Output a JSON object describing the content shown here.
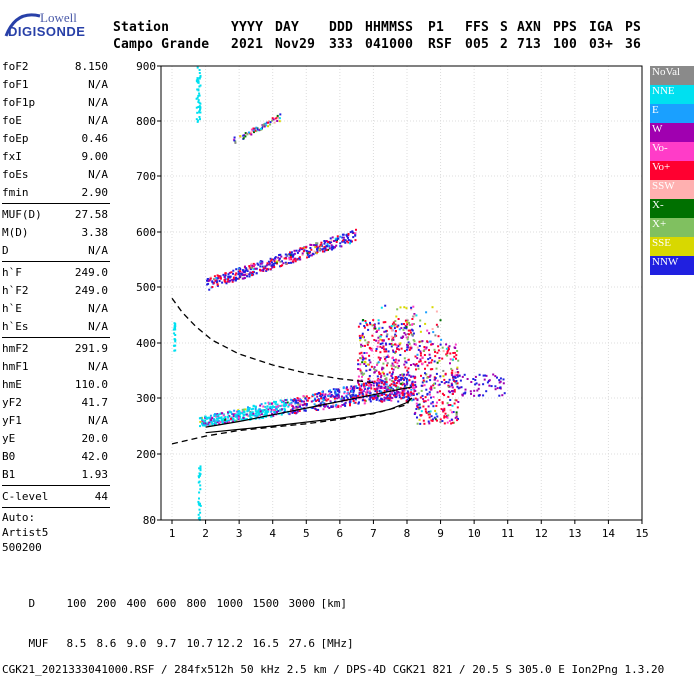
{
  "logo": {
    "line1": "Lowell",
    "line2": "DIGISONDE"
  },
  "header": {
    "labels": [
      "Station",
      "YYYY",
      "DAY",
      "DDD",
      "HHMMSS",
      "P1",
      "FFS",
      "S",
      "AXN",
      "PPS",
      "IGA",
      "PS"
    ],
    "values": [
      "Campo Grande",
      "2021",
      "Nov29",
      "333",
      "041000",
      "RSF",
      "005",
      "2",
      "713",
      "100",
      "03+",
      "36"
    ]
  },
  "sidebar": {
    "groups": [
      [
        {
          "name": "foF2",
          "value": "8.150"
        },
        {
          "name": "foF1",
          "value": "N/A"
        },
        {
          "name": "foF1p",
          "value": "N/A"
        },
        {
          "name": "foE",
          "value": "N/A"
        },
        {
          "name": "foEp",
          "value": "0.46"
        },
        {
          "name": "fxI",
          "value": "9.00"
        },
        {
          "name": "foEs",
          "value": "N/A"
        },
        {
          "name": "fmin",
          "value": "2.90"
        }
      ],
      [
        {
          "name": "MUF(D)",
          "value": "27.58"
        },
        {
          "name": "M(D)",
          "value": "3.38"
        },
        {
          "name": "D",
          "value": "N/A"
        }
      ],
      [
        {
          "name": "h`F",
          "value": "249.0"
        },
        {
          "name": "h`F2",
          "value": "249.0"
        },
        {
          "name": "h`E",
          "value": "N/A"
        },
        {
          "name": "h`Es",
          "value": "N/A"
        }
      ],
      [
        {
          "name": "hmF2",
          "value": "291.9"
        },
        {
          "name": "hmF1",
          "value": "N/A"
        },
        {
          "name": "hmE",
          "value": "110.0"
        },
        {
          "name": "yF2",
          "value": "41.7"
        },
        {
          "name": "yF1",
          "value": "N/A"
        },
        {
          "name": "yE",
          "value": "20.0"
        },
        {
          "name": "B0",
          "value": "42.0"
        },
        {
          "name": "B1",
          "value": "1.93"
        }
      ],
      [
        {
          "name": "C-level",
          "value": "44"
        }
      ]
    ],
    "auto": [
      "Auto:",
      "Artist5",
      "500200"
    ]
  },
  "legend": [
    {
      "label": "NoVal",
      "color": "#8a8a8a"
    },
    {
      "label": "NNE",
      "color": "#00e0f0"
    },
    {
      "label": "E",
      "color": "#1aa0ff"
    },
    {
      "label": "W",
      "color": "#a000b0"
    },
    {
      "label": "Vo-",
      "color": "#ff3cc8"
    },
    {
      "label": "Vo+",
      "color": "#ff0030"
    },
    {
      "label": "SSW",
      "color": "#ffb0b0"
    },
    {
      "label": "X-",
      "color": "#007000"
    },
    {
      "label": "X+",
      "color": "#80c060"
    },
    {
      "label": "SSE",
      "color": "#d8d800"
    },
    {
      "label": "NNW",
      "color": "#2020e0"
    }
  ],
  "chart_data": {
    "type": "scatter",
    "title": "",
    "xlabel": "",
    "ylabel": "",
    "xlim": [
      1,
      15
    ],
    "ylim": [
      80,
      900
    ],
    "xticks": [
      1,
      2,
      3,
      4,
      5,
      6,
      7,
      8,
      9,
      10,
      11,
      12,
      13,
      14,
      15
    ],
    "yticks": [
      80,
      200,
      300,
      400,
      500,
      600,
      700,
      800,
      900
    ],
    "grid": true,
    "legend_position": "right",
    "traces": [
      {
        "name": "",
        "style": "dashed",
        "color": "#000000",
        "x": [
          1.0,
          1.3,
          1.7,
          2.2,
          3.0,
          4.0,
          5.0,
          6.0,
          7.0
        ],
        "y": [
          480,
          455,
          430,
          405,
          380,
          360,
          345,
          335,
          328
        ]
      },
      {
        "name": "",
        "style": "dashed",
        "color": "#000000",
        "x": [
          1.0,
          2.0,
          3.0,
          4.0,
          5.0,
          6.0,
          7.0,
          8.0,
          8.1
        ],
        "y": [
          218,
          232,
          242,
          248,
          254,
          262,
          272,
          288,
          300
        ]
      },
      {
        "name": "",
        "style": "solid",
        "color": "#000000",
        "x": [
          2.0,
          3.0,
          4.0,
          5.0,
          6.0,
          7.0,
          7.5,
          8.0,
          8.15
        ],
        "y": [
          238,
          244,
          250,
          257,
          264,
          273,
          280,
          292,
          300
        ]
      },
      {
        "name": "",
        "style": "solid",
        "color": "#000000",
        "x": [
          2.0,
          3.0,
          4.0,
          5.0,
          6.0,
          7.0,
          7.8,
          8.15
        ],
        "y": [
          248,
          258,
          270,
          282,
          294,
          306,
          316,
          320
        ]
      }
    ],
    "point_clusters": [
      {
        "name": "O-trace F2",
        "x_range": [
          1.8,
          8.2
        ],
        "y_start": [
          248,
          262
        ],
        "y_end": [
          300,
          330
        ]
      },
      {
        "name": "F2 cusp",
        "x_range": [
          6.5,
          9.5
        ],
        "y_range": [
          290,
          470
        ]
      },
      {
        "name": "Second hop",
        "x_range": [
          2.0,
          6.5
        ],
        "y_start": [
          495,
          505
        ],
        "y_end": [
          580,
          610
        ]
      },
      {
        "name": "Third hop",
        "x_range": [
          2.8,
          4.2
        ],
        "y_start": [
          760,
          765
        ],
        "y_end": [
          800,
          815
        ]
      }
    ]
  },
  "footer": {
    "d_label": "D",
    "d_values": [
      "100",
      "200",
      "400",
      "600",
      "800",
      "1000",
      "1500",
      "3000"
    ],
    "d_unit": "[km]",
    "muf_label": "MUF",
    "muf_values": [
      "8.5",
      "8.6",
      "9.0",
      "9.7",
      "10.7",
      "12.2",
      "16.5",
      "27.6"
    ],
    "muf_unit": "[MHz]",
    "info": "CGK21_2021333041000.RSF / 284fx512h 50 kHz 2.5 km / DPS-4D CGK21 821 / 20.5 S 305.0 E Ion2Png 1.3.20"
  }
}
